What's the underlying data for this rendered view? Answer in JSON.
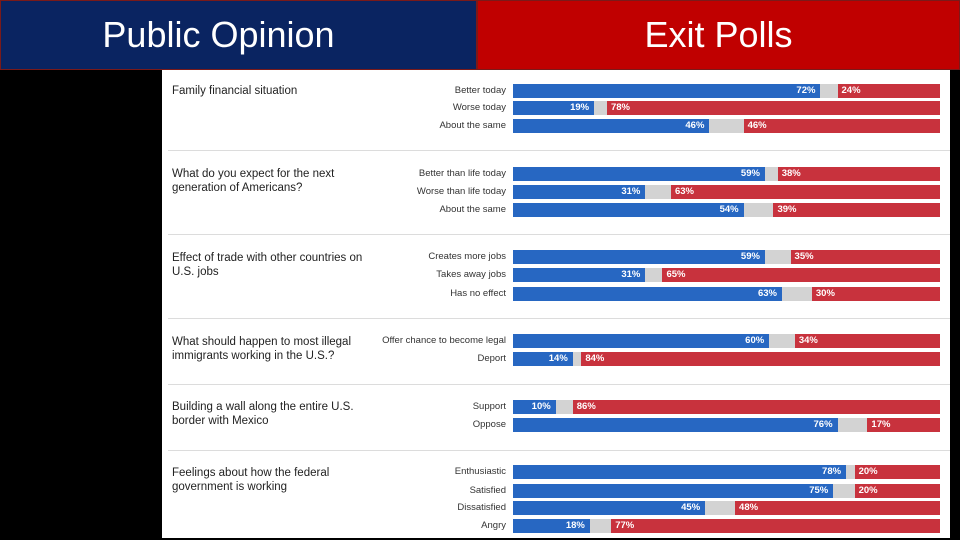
{
  "header": {
    "left_title": "Public Opinion",
    "right_title": "Exit Polls"
  },
  "colors": {
    "democrat": "#2767c2",
    "republican": "#c8323d",
    "other": "#d3d3d3"
  },
  "chart_data": {
    "type": "bar",
    "stacked": true,
    "orientation": "horizontal",
    "unit": "%",
    "questions": [
      {
        "question": "Family financial situation",
        "rows": [
          {
            "category": "Better today",
            "dem": 72,
            "rep": 24,
            "dem_label": "72%",
            "rep_label": "24%"
          },
          {
            "category": "Worse today",
            "dem": 19,
            "rep": 78,
            "dem_label": "19%",
            "rep_label": "78%"
          },
          {
            "category": "About the same",
            "dem": 46,
            "rep": 46,
            "dem_label": "46%",
            "rep_label": "46%"
          }
        ]
      },
      {
        "question": "What do you expect for the next generation of Americans?",
        "rows": [
          {
            "category": "Better than life today",
            "dem": 59,
            "rep": 38,
            "dem_label": "59%",
            "rep_label": "38%"
          },
          {
            "category": "Worse than life today",
            "dem": 31,
            "rep": 63,
            "dem_label": "31%",
            "rep_label": "63%"
          },
          {
            "category": "About the same",
            "dem": 54,
            "rep": 39,
            "dem_label": "54%",
            "rep_label": "39%"
          }
        ]
      },
      {
        "question": "Effect of trade with other countries on U.S. jobs",
        "rows": [
          {
            "category": "Creates more jobs",
            "dem": 59,
            "rep": 35,
            "dem_label": "59%",
            "rep_label": "35%"
          },
          {
            "category": "Takes away jobs",
            "dem": 31,
            "rep": 65,
            "dem_label": "31%",
            "rep_label": "65%"
          },
          {
            "category": "Has no effect",
            "dem": 63,
            "rep": 30,
            "dem_label": "63%",
            "rep_label": "30%"
          }
        ]
      },
      {
        "question": "What should happen to most illegal immigrants working in the U.S.?",
        "rows": [
          {
            "category": "Offer chance to become legal",
            "dem": 60,
            "rep": 34,
            "dem_label": "60%",
            "rep_label": "34%"
          },
          {
            "category": "Deport",
            "dem": 14,
            "rep": 84,
            "dem_label": "14%",
            "rep_label": "84%"
          }
        ]
      },
      {
        "question": "Building a wall along the entire U.S. border with Mexico",
        "rows": [
          {
            "category": "Support",
            "dem": 10,
            "rep": 86,
            "dem_label": "10%",
            "rep_label": "86%"
          },
          {
            "category": "Oppose",
            "dem": 76,
            "rep": 17,
            "dem_label": "76%",
            "rep_label": "17%"
          }
        ]
      },
      {
        "question": "Feelings about how the federal government is working",
        "rows": [
          {
            "category": "Enthusiastic",
            "dem": 78,
            "rep": 20,
            "dem_label": "78%",
            "rep_label": "20%"
          },
          {
            "category": "Satisfied",
            "dem": 75,
            "rep": 20,
            "dem_label": "75%",
            "rep_label": "20%"
          },
          {
            "category": "Dissatisfied",
            "dem": 45,
            "rep": 48,
            "dem_label": "45%",
            "rep_label": "48%"
          },
          {
            "category": "Angry",
            "dem": 18,
            "rep": 77,
            "dem_label": "18%",
            "rep_label": "77%"
          }
        ]
      }
    ]
  }
}
